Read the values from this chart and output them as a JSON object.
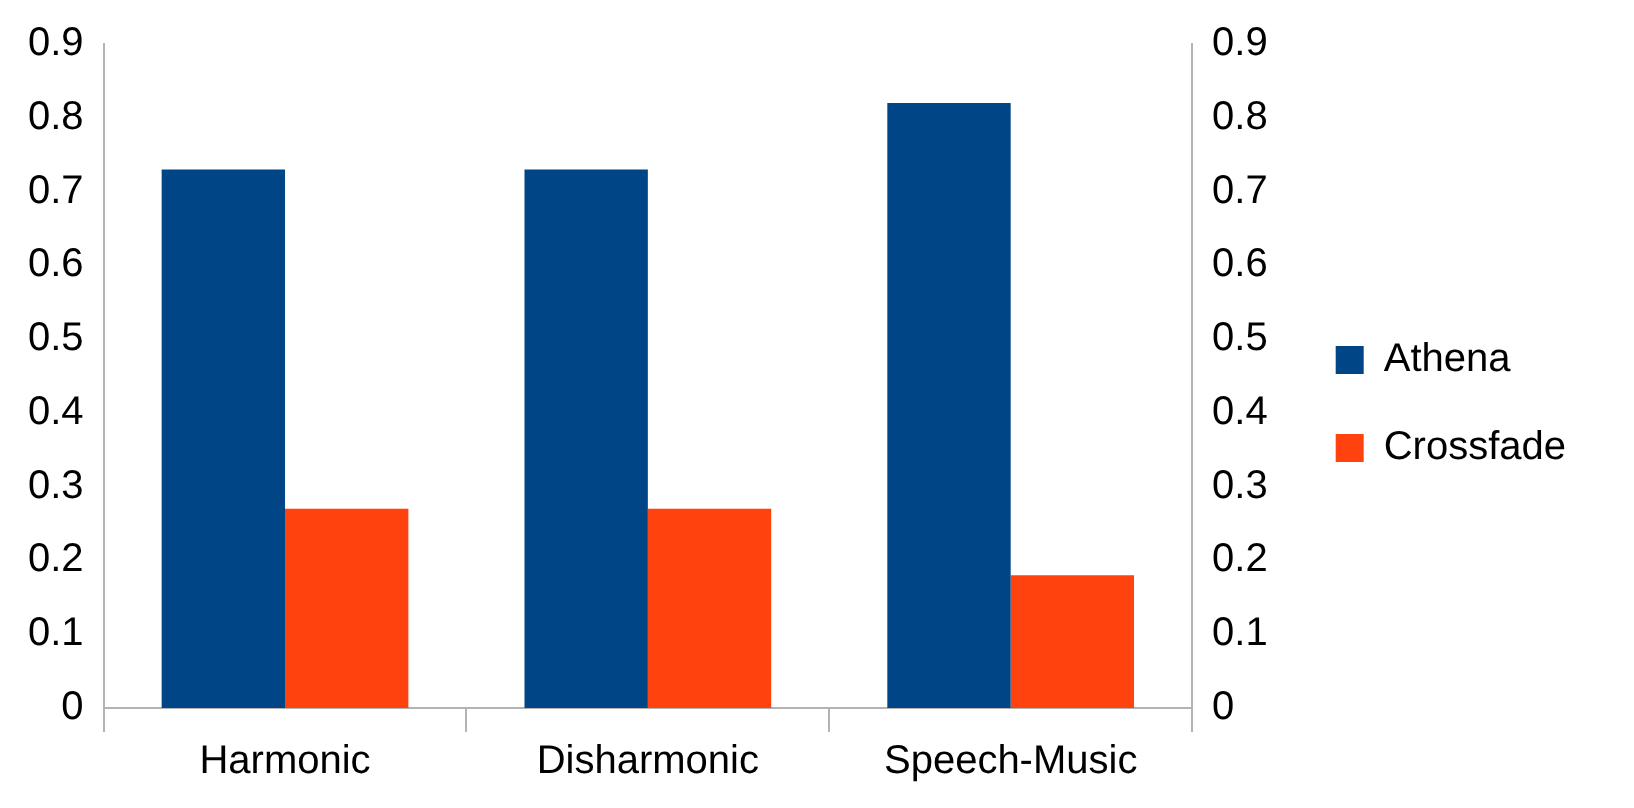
{
  "chart_data": {
    "type": "bar",
    "categories": [
      "Harmonic",
      "Disharmonic",
      "Speech-Music"
    ],
    "series": [
      {
        "name": "Athena",
        "color": "#004586",
        "values": [
          0.73,
          0.73,
          0.82
        ]
      },
      {
        "name": "Crossfade",
        "color": "#ff420e",
        "values": [
          0.27,
          0.27,
          0.18
        ]
      }
    ],
    "ylim": [
      0,
      0.9
    ],
    "yticks": [
      0,
      0.1,
      0.2,
      0.3,
      0.4,
      0.5,
      0.6,
      0.7,
      0.8,
      0.9
    ],
    "y2lim": [
      0,
      0.9
    ],
    "y2ticks": [
      0,
      0.1,
      0.2,
      0.3,
      0.4,
      0.5,
      0.6,
      0.7,
      0.8,
      0.9
    ],
    "grid": false,
    "legend": "right"
  }
}
